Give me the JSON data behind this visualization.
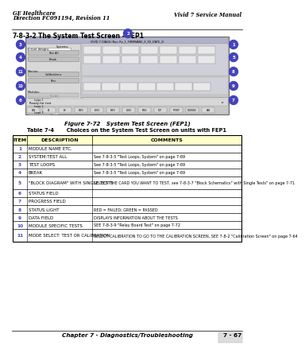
{
  "bg_color": "#ffffff",
  "header_left_line1": "GE Healthcare",
  "header_left_line2": "Direction FC091194, Revision 11",
  "header_right": "Vivid 7 Service Manual",
  "section_title": "7-8-3-2",
  "section_title2": "The System Test Screen - FEP1",
  "figure_caption": "Figure 7-72   System Test Screen (FEP1)",
  "table_title": "Table 7-4       Choices on the System Test Screen on units with FEP1",
  "table_headers": [
    "ITEM",
    "DESCRIPTION",
    "COMMENTS"
  ],
  "table_header_bg": "#ffffcc",
  "callout_color": "#4444bb",
  "table_rows": [
    [
      "1",
      "MODULE NAME ETC.",
      ""
    ],
    [
      "2",
      "SYSTEM:TEST ALL",
      "See 7-8-3-5 \"Test Loops, System\" on page 7-69"
    ],
    [
      "3",
      "TEST LOOPS",
      "See 7-8-3-5 \"Test Loops, System\" on page 7-69"
    ],
    [
      "4",
      "BREAK",
      "See 7-8-3-5 \"Test Loops, System\" on page 7-69"
    ],
    [
      "5",
      "\"BLOCK DIAGRAM\" WITH SINGLE TESTS",
      "SELECT THE CARD YOU WANT TO TEST, see 7-8-3-7 \"Block Schematics\" with Single Tests\" on page 7-71"
    ],
    [
      "6",
      "STATUS FIELD",
      ""
    ],
    [
      "7",
      "PROGRESS FIELD",
      ""
    ],
    [
      "8",
      "STATUS LIGHT",
      "RED = FAILED; GREEN = PASSED"
    ],
    [
      "9",
      "DATA FIELD",
      "DISPLAYS INFORMATION ABOUT THE TESTS"
    ],
    [
      "10",
      "MODULE SPECIFIC TESTS",
      "SEE 7-8-3-9 \"Relay Board Test\" on page 7-72"
    ],
    [
      "11",
      "MODE SELECT: TEST OR CALIBRATION",
      "SELECT CALIBRATION TO GO TO THE CALIBRATION SCREEN, SEE 7-8-2 \"Calibration Screen\" on page 7-64"
    ]
  ],
  "footer_text": "Chapter 7 - Diagnostics/Troubleshooting",
  "footer_right": "7 - 67",
  "link_color": "#4444bb"
}
